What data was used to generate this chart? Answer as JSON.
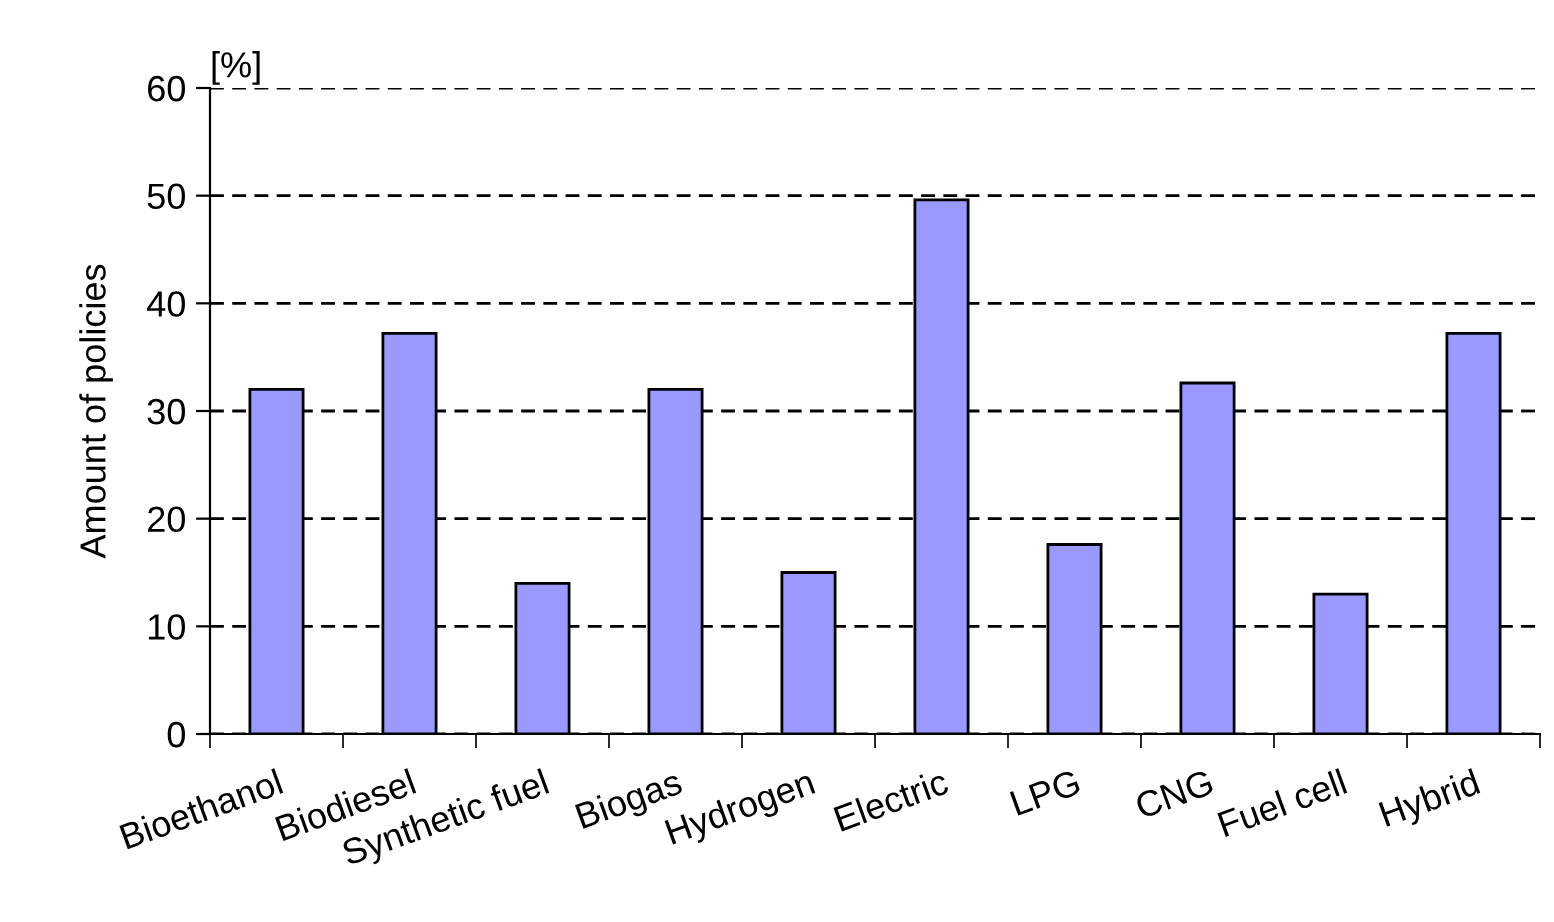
{
  "chart_data": {
    "type": "bar",
    "ylabel": "Amount of policies",
    "annotations": [
      "[%]"
    ],
    "categories": [
      "Bioethanol",
      "Biodiesel",
      "Synthetic fuel",
      "Biogas",
      "Hydrogen",
      "Electric",
      "LPG",
      "CNG",
      "Fuel cell",
      "Hybrid"
    ],
    "values": [
      32,
      37.2,
      14,
      32,
      15,
      49.6,
      17.6,
      32.6,
      13,
      37.2
    ],
    "color": "#9999ff",
    "ylim": [
      0,
      60
    ],
    "yticks": [
      0,
      10,
      20,
      30,
      40,
      50,
      60
    ],
    "grid": "y",
    "legend": false
  }
}
